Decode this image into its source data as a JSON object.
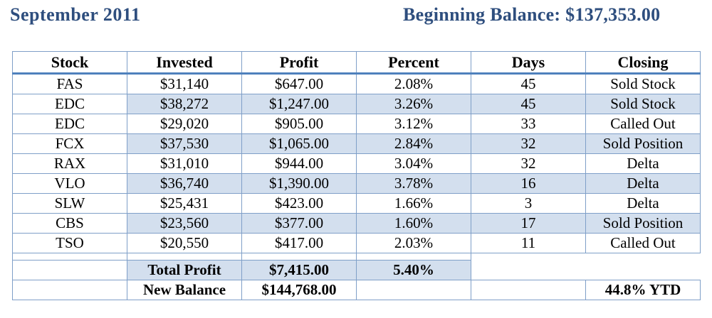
{
  "header": {
    "month": "September  2011",
    "beginning_balance": "Beginning Balance:  $137,353.00"
  },
  "table": {
    "columns": [
      "Stock",
      "Invested",
      "Profit",
      "Percent",
      "Days",
      "Closing"
    ],
    "rows": [
      [
        "FAS",
        "$31,140",
        "$647.00",
        "2.08%",
        "45",
        "Sold Stock"
      ],
      [
        "EDC",
        "$38,272",
        "$1,247.00",
        "3.26%",
        "45",
        "Sold Stock"
      ],
      [
        "EDC",
        "$29,020",
        "$905.00",
        "3.12%",
        "33",
        "Called Out"
      ],
      [
        "FCX",
        "$37,530",
        "$1,065.00",
        "2.84%",
        "32",
        "Sold Position"
      ],
      [
        "RAX",
        "$31,010",
        "$944.00",
        "3.04%",
        "32",
        "Delta"
      ],
      [
        "VLO",
        "$36,740",
        "$1,390.00",
        "3.78%",
        "16",
        "Delta"
      ],
      [
        "SLW",
        "$25,431",
        "$423.00",
        "1.66%",
        "3",
        "Delta"
      ],
      [
        "CBS",
        "$23,560",
        "$377.00",
        "1.60%",
        "17",
        "Sold Position"
      ],
      [
        "TSO",
        "$20,550",
        "$417.00",
        "2.03%",
        "11",
        "Called Out"
      ]
    ]
  },
  "summary": {
    "total_profit_label": "Total Profit",
    "total_profit_value": "$7,415.00",
    "total_percent": "5.40%",
    "new_balance_label": "New Balance",
    "new_balance_value": "$144,768.00",
    "ytd": "44.8% YTD"
  }
}
